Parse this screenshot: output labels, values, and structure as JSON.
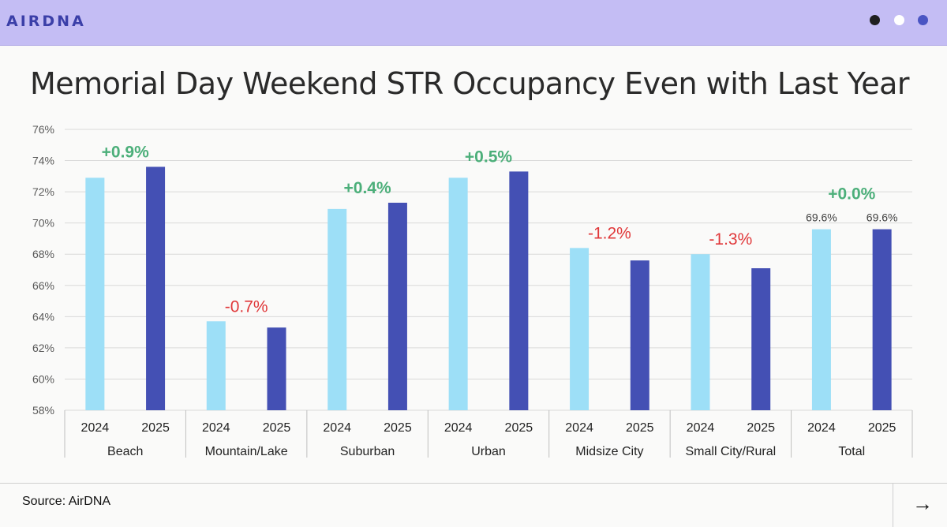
{
  "brand": {
    "logo_text": "AIRDNA",
    "header_dots": [
      "#1f1f1f",
      "#ffffff",
      "#4a55c3"
    ]
  },
  "page": {
    "title": "Memorial Day Weekend STR Occupancy Even with Last Year",
    "source": "Source: AirDNA",
    "next_icon": "arrow-right-icon",
    "next_glyph": "→"
  },
  "colors": {
    "series_2024": "#9ddff7",
    "series_2025": "#4450b4",
    "positive": "#4caf7a",
    "negative": "#e0383a"
  },
  "chart_data": {
    "type": "bar",
    "title": "Memorial Day Weekend STR Occupancy Even with Last Year",
    "xlabel": "",
    "ylabel": "",
    "ylim": [
      58,
      76
    ],
    "yticks": [
      "58%",
      "60%",
      "62%",
      "64%",
      "66%",
      "68%",
      "70%",
      "72%",
      "74%",
      "76%"
    ],
    "grid": true,
    "groups": [
      "Beach",
      "Mountain/Lake",
      "Suburban",
      "Urban",
      "Midsize City",
      "Small City/Rural",
      "Total"
    ],
    "sub_categories": [
      "2024",
      "2025"
    ],
    "series": [
      {
        "name": "2024",
        "values": [
          72.9,
          63.7,
          70.9,
          72.9,
          68.4,
          68.0,
          69.6
        ]
      },
      {
        "name": "2025",
        "values": [
          73.6,
          63.3,
          71.3,
          73.3,
          67.6,
          67.1,
          69.6
        ]
      }
    ],
    "change_labels": [
      "+0.9%",
      "-0.7%",
      "+0.4%",
      "+0.5%",
      "-1.2%",
      "-1.3%",
      "+0.0%"
    ],
    "change_signs": [
      "positive",
      "negative",
      "positive",
      "positive",
      "negative",
      "negative",
      "positive"
    ],
    "data_labels": [
      {
        "group": "Total",
        "series": "2024",
        "text": "69.6%"
      },
      {
        "group": "Total",
        "series": "2025",
        "text": "69.6%"
      }
    ]
  }
}
